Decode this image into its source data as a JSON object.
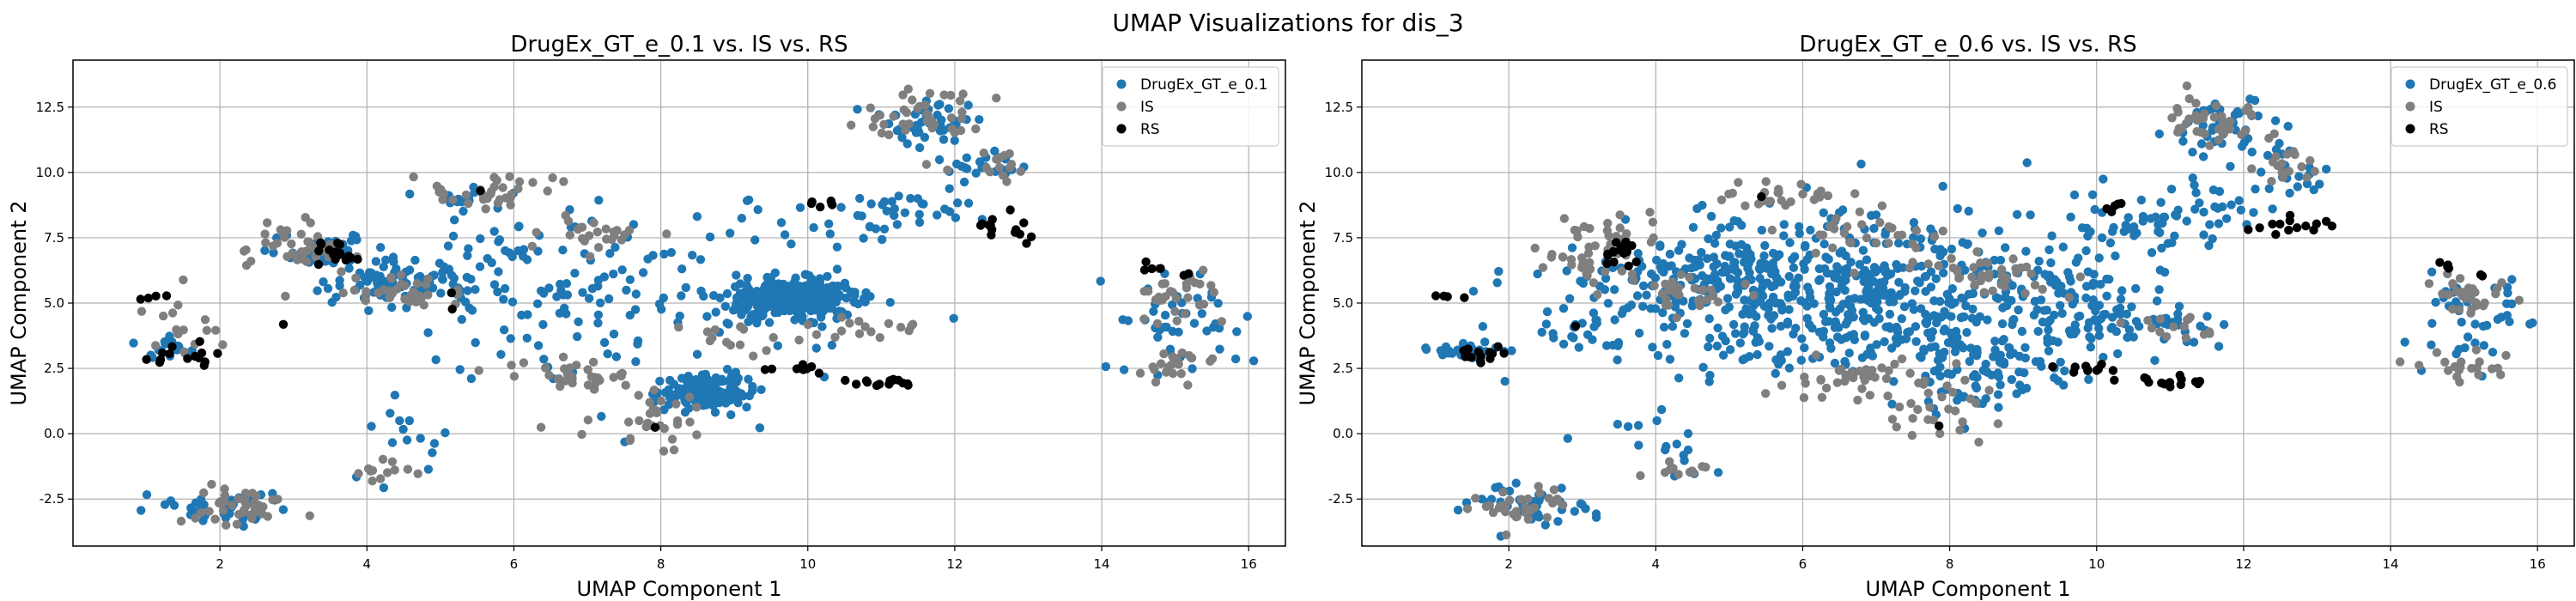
{
  "figure": {
    "suptitle": "UMAP Visualizations for dis_3"
  },
  "colors": {
    "generated": "#1f77b4",
    "IS": "#7f7f7f",
    "RS": "#000000"
  },
  "chart_data": [
    {
      "type": "scatter",
      "title": "DrugEx_GT_e_0.1 vs. IS vs. RS",
      "xlabel": "UMAP Component 1",
      "ylabel": "UMAP Component 2",
      "xlim": [
        0.0,
        16.5
      ],
      "ylim": [
        -4.3,
        14.3
      ],
      "xticks": [
        2,
        4,
        6,
        8,
        10,
        12,
        14,
        16
      ],
      "yticks": [
        -2.5,
        0.0,
        2.5,
        5.0,
        7.5,
        10.0,
        12.5
      ],
      "ytick_labels": [
        "-2.5",
        "0.0",
        "2.5",
        "5.0",
        "7.5",
        "10.0",
        "12.5"
      ],
      "grid": true,
      "legend_position": "top-right",
      "series": [
        {
          "name": "DrugEx_GT_e_0.1",
          "color": "#1f77b4",
          "clusters": [
            {
              "cx": 9.8,
              "cy": 5.2,
              "sx": 0.45,
              "sy": 0.35,
              "n": 320
            },
            {
              "cx": 8.6,
              "cy": 1.6,
              "sx": 0.3,
              "sy": 0.3,
              "n": 140
            },
            {
              "cx": 4.5,
              "cy": 5.8,
              "sx": 0.55,
              "sy": 0.45,
              "n": 70
            },
            {
              "cx": 3.4,
              "cy": 6.9,
              "sx": 0.45,
              "sy": 0.35,
              "n": 45
            },
            {
              "cx": 6.5,
              "cy": 6.3,
              "sx": 1.2,
              "sy": 1.4,
              "n": 90
            },
            {
              "cx": 11.7,
              "cy": 12.0,
              "sx": 0.35,
              "sy": 0.45,
              "n": 45
            },
            {
              "cx": 12.5,
              "cy": 10.3,
              "sx": 0.3,
              "sy": 0.5,
              "n": 20
            },
            {
              "cx": 11.4,
              "cy": 8.6,
              "sx": 0.5,
              "sy": 0.4,
              "n": 30
            },
            {
              "cx": 2.2,
              "cy": -2.8,
              "sx": 0.4,
              "sy": 0.3,
              "n": 40
            },
            {
              "cx": 1.2,
              "cy": 3.2,
              "sx": 0.2,
              "sy": 0.2,
              "n": 18
            },
            {
              "cx": 15.1,
              "cy": 4.2,
              "sx": 0.45,
              "sy": 1.0,
              "n": 45
            },
            {
              "cx": 8.0,
              "cy": 4.0,
              "sx": 1.6,
              "sy": 1.8,
              "n": 70
            },
            {
              "cx": 4.4,
              "cy": -0.5,
              "sx": 0.35,
              "sy": 0.8,
              "n": 15
            },
            {
              "cx": 10.0,
              "cy": 8.0,
              "sx": 0.6,
              "sy": 0.5,
              "n": 20
            },
            {
              "cx": 5.4,
              "cy": 9.0,
              "sx": 0.3,
              "sy": 0.2,
              "n": 12
            }
          ]
        },
        {
          "name": "IS",
          "color": "#7f7f7f",
          "clusters": [
            {
              "cx": 2.2,
              "cy": -2.8,
              "sx": 0.4,
              "sy": 0.35,
              "n": 40
            },
            {
              "cx": 3.1,
              "cy": 7.2,
              "sx": 0.4,
              "sy": 0.6,
              "n": 45
            },
            {
              "cx": 4.4,
              "cy": 5.4,
              "sx": 0.4,
              "sy": 0.3,
              "n": 35
            },
            {
              "cx": 5.6,
              "cy": 9.1,
              "sx": 0.4,
              "sy": 0.3,
              "n": 25
            },
            {
              "cx": 6.8,
              "cy": 2.2,
              "sx": 0.5,
              "sy": 0.4,
              "n": 35
            },
            {
              "cx": 8.0,
              "cy": 0.5,
              "sx": 0.4,
              "sy": 0.6,
              "n": 30
            },
            {
              "cx": 11.6,
              "cy": 12.0,
              "sx": 0.4,
              "sy": 0.5,
              "n": 40
            },
            {
              "cx": 12.6,
              "cy": 10.2,
              "sx": 0.2,
              "sy": 0.4,
              "n": 15
            },
            {
              "cx": 15.0,
              "cy": 5.2,
              "sx": 0.3,
              "sy": 0.4,
              "n": 30
            },
            {
              "cx": 15.0,
              "cy": 2.6,
              "sx": 0.3,
              "sy": 0.3,
              "n": 20
            },
            {
              "cx": 11.0,
              "cy": 4.0,
              "sx": 0.4,
              "sy": 0.3,
              "n": 15
            },
            {
              "cx": 4.2,
              "cy": -1.4,
              "sx": 0.3,
              "sy": 0.3,
              "n": 12
            },
            {
              "cx": 7.0,
              "cy": 7.5,
              "sx": 0.5,
              "sy": 0.4,
              "n": 25
            },
            {
              "cx": 1.5,
              "cy": 4.2,
              "sx": 0.4,
              "sy": 0.6,
              "n": 15
            },
            {
              "cx": 9.0,
              "cy": 3.7,
              "sx": 0.5,
              "sy": 0.4,
              "n": 15
            },
            {
              "cx": 6.1,
              "cy": 9.7,
              "sx": 0.3,
              "sy": 0.2,
              "n": 8
            }
          ]
        },
        {
          "name": "RS",
          "color": "#000000",
          "clusters": [
            {
              "cx": 3.55,
              "cy": 6.9,
              "sx": 0.12,
              "sy": 0.25,
              "n": 16
            },
            {
              "cx": 1.6,
              "cy": 3.0,
              "sx": 0.25,
              "sy": 0.2,
              "n": 14
            },
            {
              "cx": 1.2,
              "cy": 5.2,
              "sx": 0.15,
              "sy": 0.05,
              "n": 4
            },
            {
              "cx": 10.9,
              "cy": 2.0,
              "sx": 0.3,
              "sy": 0.08,
              "n": 14
            },
            {
              "cx": 9.9,
              "cy": 2.5,
              "sx": 0.3,
              "sy": 0.08,
              "n": 10
            },
            {
              "cx": 12.7,
              "cy": 7.9,
              "sx": 0.25,
              "sy": 0.25,
              "n": 14
            },
            {
              "cx": 10.2,
              "cy": 8.8,
              "sx": 0.12,
              "sy": 0.15,
              "n": 5
            },
            {
              "cx": 14.7,
              "cy": 6.4,
              "sx": 0.08,
              "sy": 0.08,
              "n": 4
            },
            {
              "cx": 15.2,
              "cy": 6.1,
              "sx": 0.05,
              "sy": 0.05,
              "n": 2
            },
            {
              "cx": 7.9,
              "cy": 0.2,
              "sx": 0.05,
              "sy": 0.05,
              "n": 1
            },
            {
              "cx": 5.7,
              "cy": 5.0,
              "sx": 0.3,
              "sy": 0.3,
              "n": 2
            },
            {
              "cx": 5.5,
              "cy": 9.2,
              "sx": 0.05,
              "sy": 0.05,
              "n": 1
            },
            {
              "cx": 2.9,
              "cy": 4.1,
              "sx": 0.05,
              "sy": 0.05,
              "n": 1
            }
          ]
        }
      ]
    },
    {
      "type": "scatter",
      "title": "DrugEx_GT_e_0.6 vs. IS vs. RS",
      "xlabel": "UMAP Component 1",
      "ylabel": "UMAP Component 2",
      "xlim": [
        0.0,
        16.5
      ],
      "ylim": [
        -4.3,
        14.3
      ],
      "xticks": [
        2,
        4,
        6,
        8,
        10,
        12,
        14,
        16
      ],
      "yticks": [
        -2.5,
        0.0,
        2.5,
        5.0,
        7.5,
        10.0,
        12.5
      ],
      "ytick_labels": [
        "-2.5",
        "0.0",
        "2.5",
        "5.0",
        "7.5",
        "10.0",
        "12.5"
      ],
      "grid": true,
      "legend_position": "top-right",
      "series": [
        {
          "name": "DrugEx_GT_e_0.6",
          "color": "#1f77b4",
          "clusters": [
            {
              "cx": 6.8,
              "cy": 5.2,
              "sx": 1.7,
              "sy": 1.6,
              "n": 600
            },
            {
              "cx": 4.6,
              "cy": 6.0,
              "sx": 0.7,
              "sy": 0.6,
              "n": 90
            },
            {
              "cx": 8.5,
              "cy": 2.5,
              "sx": 0.6,
              "sy": 0.8,
              "n": 80
            },
            {
              "cx": 11.6,
              "cy": 11.8,
              "sx": 0.4,
              "sy": 0.6,
              "n": 45
            },
            {
              "cx": 11.2,
              "cy": 8.5,
              "sx": 0.6,
              "sy": 0.6,
              "n": 40
            },
            {
              "cx": 12.5,
              "cy": 9.8,
              "sx": 0.3,
              "sy": 0.5,
              "n": 20
            },
            {
              "cx": 2.2,
              "cy": -2.8,
              "sx": 0.4,
              "sy": 0.4,
              "n": 45
            },
            {
              "cx": 1.4,
              "cy": 3.2,
              "sx": 0.3,
              "sy": 0.2,
              "n": 25
            },
            {
              "cx": 15.1,
              "cy": 4.2,
              "sx": 0.45,
              "sy": 1.0,
              "n": 45
            },
            {
              "cx": 9.7,
              "cy": 4.6,
              "sx": 0.8,
              "sy": 0.8,
              "n": 60
            },
            {
              "cx": 11.0,
              "cy": 4.0,
              "sx": 0.5,
              "sy": 0.3,
              "n": 25
            },
            {
              "cx": 4.2,
              "cy": -0.5,
              "sx": 0.35,
              "sy": 0.8,
              "n": 15
            },
            {
              "cx": 3.0,
              "cy": 4.5,
              "sx": 0.5,
              "sy": 0.8,
              "n": 30
            },
            {
              "cx": 10.3,
              "cy": 7.6,
              "sx": 0.5,
              "sy": 0.4,
              "n": 25
            }
          ]
        },
        {
          "name": "IS",
          "color": "#7f7f7f",
          "clusters": [
            {
              "cx": 2.2,
              "cy": -2.8,
              "sx": 0.4,
              "sy": 0.35,
              "n": 35
            },
            {
              "cx": 3.1,
              "cy": 7.0,
              "sx": 0.45,
              "sy": 0.6,
              "n": 50
            },
            {
              "cx": 4.4,
              "cy": 5.4,
              "sx": 0.4,
              "sy": 0.3,
              "n": 30
            },
            {
              "cx": 5.6,
              "cy": 9.1,
              "sx": 0.4,
              "sy": 0.3,
              "n": 25
            },
            {
              "cx": 6.8,
              "cy": 2.2,
              "sx": 0.6,
              "sy": 0.4,
              "n": 40
            },
            {
              "cx": 8.0,
              "cy": 0.7,
              "sx": 0.4,
              "sy": 0.6,
              "n": 25
            },
            {
              "cx": 11.6,
              "cy": 12.0,
              "sx": 0.4,
              "sy": 0.5,
              "n": 40
            },
            {
              "cx": 12.6,
              "cy": 10.4,
              "sx": 0.2,
              "sy": 0.4,
              "n": 15
            },
            {
              "cx": 15.0,
              "cy": 5.2,
              "sx": 0.3,
              "sy": 0.4,
              "n": 30
            },
            {
              "cx": 15.0,
              "cy": 2.6,
              "sx": 0.3,
              "sy": 0.3,
              "n": 20
            },
            {
              "cx": 11.0,
              "cy": 4.0,
              "sx": 0.4,
              "sy": 0.3,
              "n": 15
            },
            {
              "cx": 4.2,
              "cy": -1.4,
              "sx": 0.3,
              "sy": 0.3,
              "n": 12
            },
            {
              "cx": 7.0,
              "cy": 7.5,
              "sx": 0.6,
              "sy": 0.4,
              "n": 30
            },
            {
              "cx": 9.0,
              "cy": 5.8,
              "sx": 0.4,
              "sy": 0.3,
              "n": 20
            },
            {
              "cx": 8.2,
              "cy": 6.2,
              "sx": 0.4,
              "sy": 0.3,
              "n": 20
            }
          ]
        },
        {
          "name": "RS",
          "color": "#000000",
          "clusters": [
            {
              "cx": 3.55,
              "cy": 6.9,
              "sx": 0.12,
              "sy": 0.25,
              "n": 16
            },
            {
              "cx": 1.6,
              "cy": 3.0,
              "sx": 0.25,
              "sy": 0.2,
              "n": 14
            },
            {
              "cx": 1.2,
              "cy": 5.2,
              "sx": 0.15,
              "sy": 0.05,
              "n": 4
            },
            {
              "cx": 10.9,
              "cy": 2.0,
              "sx": 0.3,
              "sy": 0.08,
              "n": 14
            },
            {
              "cx": 9.9,
              "cy": 2.5,
              "sx": 0.3,
              "sy": 0.08,
              "n": 10
            },
            {
              "cx": 12.7,
              "cy": 7.9,
              "sx": 0.25,
              "sy": 0.25,
              "n": 14
            },
            {
              "cx": 10.2,
              "cy": 8.8,
              "sx": 0.12,
              "sy": 0.15,
              "n": 5
            },
            {
              "cx": 14.7,
              "cy": 6.4,
              "sx": 0.08,
              "sy": 0.08,
              "n": 4
            },
            {
              "cx": 15.2,
              "cy": 6.1,
              "sx": 0.05,
              "sy": 0.05,
              "n": 2
            },
            {
              "cx": 7.9,
              "cy": 0.2,
              "sx": 0.05,
              "sy": 0.05,
              "n": 1
            },
            {
              "cx": 5.5,
              "cy": 9.2,
              "sx": 0.05,
              "sy": 0.05,
              "n": 1
            },
            {
              "cx": 2.9,
              "cy": 4.1,
              "sx": 0.05,
              "sy": 0.05,
              "n": 1
            }
          ]
        }
      ]
    }
  ]
}
